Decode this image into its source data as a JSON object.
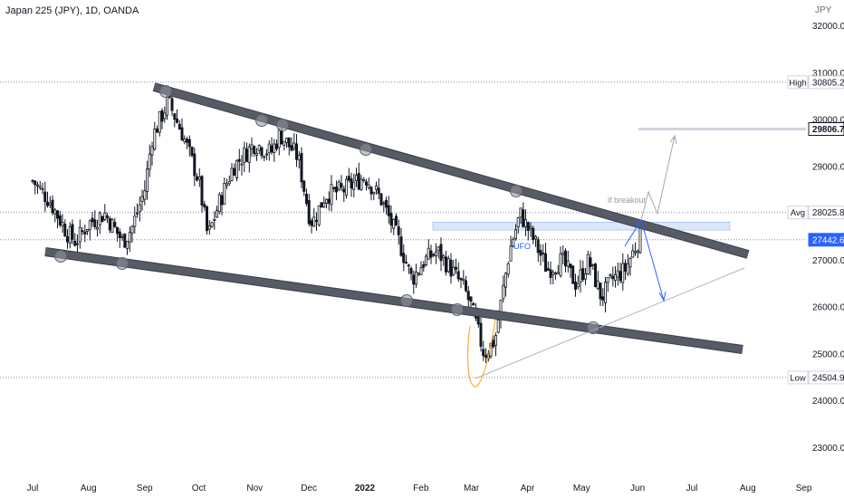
{
  "header": {
    "title": "Japan 225 (JPY), 1D, OANDA",
    "currency": "JPY"
  },
  "colors": {
    "up": "#131722",
    "down": "#131722",
    "trendline": "#5d606b",
    "trendline_border": "#3a3d46",
    "highlight_box": "#bbd3f5",
    "projection_blue": "#2962ff",
    "projection_grey": "#a7a9b0",
    "last_price_bg": "#2962ff",
    "level_bg": "#ffffff",
    "level_29806_bg": "#131722",
    "ufo_text": "#2962ff",
    "orange_highlight": "#f5a623"
  },
  "chart_data": {
    "type": "candlestick",
    "title": "Japan 225 (JPY), 1D, OANDA",
    "y_axis": {
      "ticks": [
        "32000.0",
        "31000.0",
        "30000.0",
        "29000.0",
        "28000.0",
        "27000.0",
        "26000.0",
        "25000.0",
        "24000.0",
        "23000.0"
      ],
      "range": [
        22700,
        32600
      ],
      "unit": "JPY"
    },
    "x_axis": {
      "ticks": [
        "Jul",
        "Aug",
        "Sep",
        "Oct",
        "Nov",
        "Dec",
        "2022",
        "Feb",
        "Mar",
        "Apr",
        "May",
        "Jun",
        "Jul",
        "Aug",
        "Sep"
      ]
    },
    "levels": [
      {
        "label": "High",
        "value": "30805.2"
      },
      {
        "label": "",
        "value": "29806.7"
      },
      {
        "label": "Avg",
        "value": "28025.8"
      },
      {
        "label": "",
        "value": "27442.6"
      },
      {
        "label": "Low",
        "value": "24504.9"
      }
    ],
    "annotations": [
      "if breakout",
      "UFO"
    ],
    "approx_close_path": [
      [
        "2021-07-01",
        28700
      ],
      [
        "2021-07-10",
        28300
      ],
      [
        "2021-07-20",
        27600
      ],
      [
        "2021-07-25",
        27400
      ],
      [
        "2021-08-01",
        27800
      ],
      [
        "2021-08-10",
        28000
      ],
      [
        "2021-08-20",
        27400
      ],
      [
        "2021-08-25",
        27700
      ],
      [
        "2021-09-01",
        28500
      ],
      [
        "2021-09-05",
        29600
      ],
      [
        "2021-09-14",
        30400
      ],
      [
        "2021-09-22",
        29700
      ],
      [
        "2021-10-01",
        28700
      ],
      [
        "2021-10-06",
        27500
      ],
      [
        "2021-10-12",
        28200
      ],
      [
        "2021-10-20",
        29000
      ],
      [
        "2021-11-01",
        29500
      ],
      [
        "2021-11-10",
        29300
      ],
      [
        "2021-11-15",
        29700
      ],
      [
        "2021-11-25",
        29200
      ],
      [
        "2021-12-01",
        28000
      ],
      [
        "2021-12-03",
        27800
      ],
      [
        "2021-12-10",
        28400
      ],
      [
        "2021-12-20",
        28500
      ],
      [
        "2022-01-01",
        28800
      ],
      [
        "2022-01-10",
        28300
      ],
      [
        "2022-01-20",
        27400
      ],
      [
        "2022-01-27",
        26600
      ],
      [
        "2022-02-03",
        27000
      ],
      [
        "2022-02-10",
        27200
      ],
      [
        "2022-02-18",
        26800
      ],
      [
        "2022-02-25",
        26400
      ],
      [
        "2022-03-01",
        26000
      ],
      [
        "2022-03-08",
        25000
      ],
      [
        "2022-03-14",
        25300
      ],
      [
        "2022-03-22",
        27200
      ],
      [
        "2022-03-28",
        28000
      ],
      [
        "2022-04-05",
        27400
      ],
      [
        "2022-04-12",
        26800
      ],
      [
        "2022-04-20",
        27000
      ],
      [
        "2022-04-28",
        26500
      ],
      [
        "2022-05-05",
        27000
      ],
      [
        "2022-05-12",
        26200
      ],
      [
        "2022-05-18",
        26600
      ],
      [
        "2022-05-25",
        26800
      ],
      [
        "2022-06-01",
        27400
      ],
      [
        "2022-06-03",
        27600
      ]
    ]
  }
}
